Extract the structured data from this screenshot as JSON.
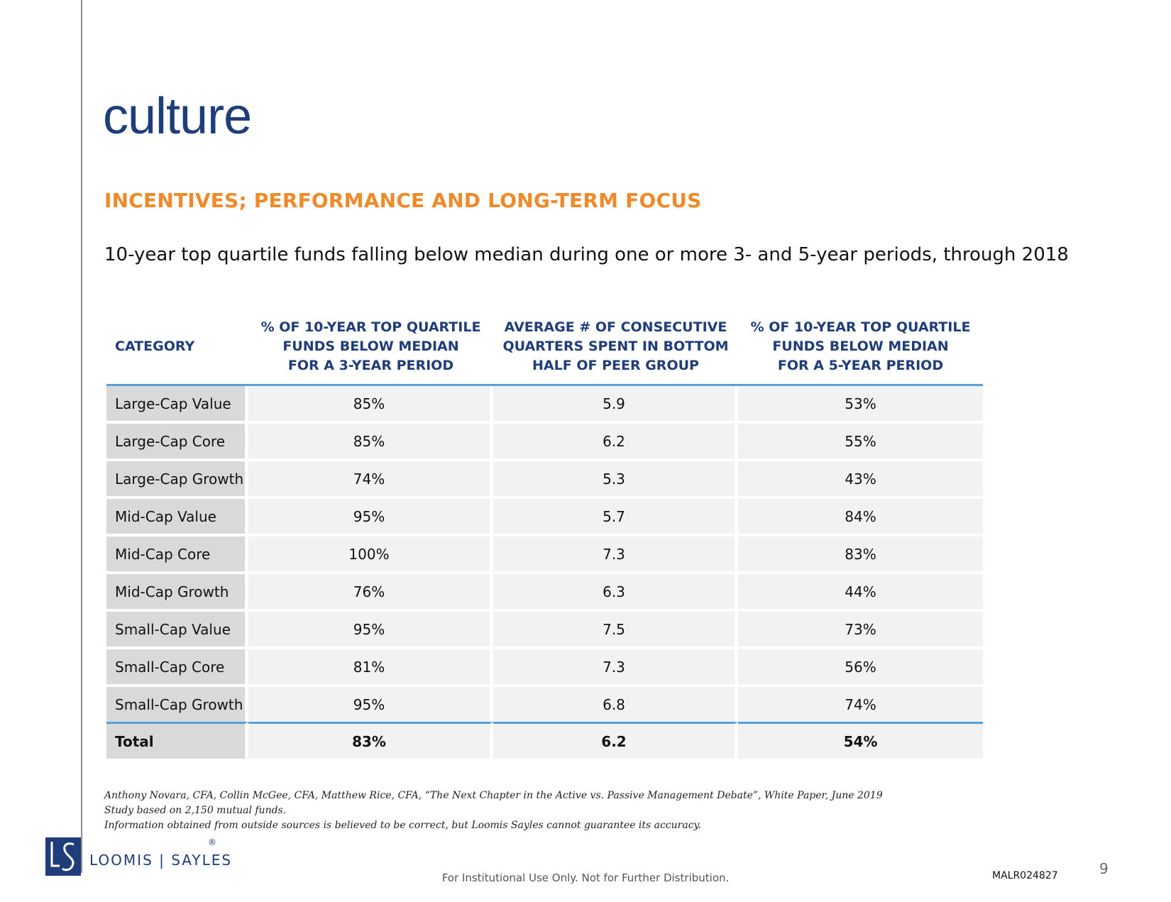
{
  "slide": {
    "title": "culture",
    "section_heading": "INCENTIVES; PERFORMANCE AND LONG-TERM FOCUS",
    "subheading": "10-year top quartile funds falling below median during one or more 3- and 5-year periods, through 2018"
  },
  "table": {
    "headers": [
      [
        "CATEGORY"
      ],
      [
        "% OF 10-YEAR TOP QUARTILE",
        "FUNDS BELOW MEDIAN",
        "FOR A 3-YEAR PERIOD"
      ],
      [
        "AVERAGE # OF CONSECUTIVE",
        "QUARTERS SPENT IN BOTTOM",
        "HALF OF PEER GROUP"
      ],
      [
        "% OF 10-YEAR TOP QUARTILE",
        "FUNDS BELOW MEDIAN",
        "FOR A 5-YEAR PERIOD"
      ]
    ],
    "rows": [
      [
        "Large-Cap Value",
        "85%",
        "5.9",
        "53%"
      ],
      [
        "Large-Cap Core",
        "85%",
        "6.2",
        "55%"
      ],
      [
        "Large-Cap Growth",
        "74%",
        "5.3",
        "43%"
      ],
      [
        "Mid-Cap Value",
        "95%",
        "5.7",
        "84%"
      ],
      [
        "Mid-Cap Core",
        "100%",
        "7.3",
        "83%"
      ],
      [
        "Mid-Cap Growth",
        "76%",
        "6.3",
        "44%"
      ],
      [
        "Small-Cap Value",
        "95%",
        "7.5",
        "73%"
      ],
      [
        "Small-Cap Core",
        "81%",
        "7.3",
        "56%"
      ],
      [
        "Small-Cap Growth",
        "95%",
        "6.8",
        "74%"
      ]
    ],
    "total": [
      "Total",
      "83%",
      "6.2",
      "54%"
    ]
  },
  "footnotes": [
    "Anthony Novara, CFA, Collin McGee, CFA, Matthew Rice, CFA, “The Next Chapter in the Active vs. Passive Management Debate”, White Paper, June 2019",
    "Study based  on 2,150 mutual funds.",
    "Information obtained from outside sources is believed to be correct, but Loomis Sayles cannot guarantee its accuracy."
  ],
  "logo": {
    "text": "LOOMIS | SAYLES",
    "registered": "®"
  },
  "footer": {
    "disclaimer": "For Institutional Use Only. Not for Further Distribution.",
    "doc_id": "MALR024827",
    "page_number": "9"
  },
  "colors": {
    "title": "#1f3d7a",
    "section_heading": "#f08a28",
    "table_rule": "#5aa0d8",
    "category_cell": "#d9d9d9",
    "value_cell": "#f2f2f2"
  }
}
